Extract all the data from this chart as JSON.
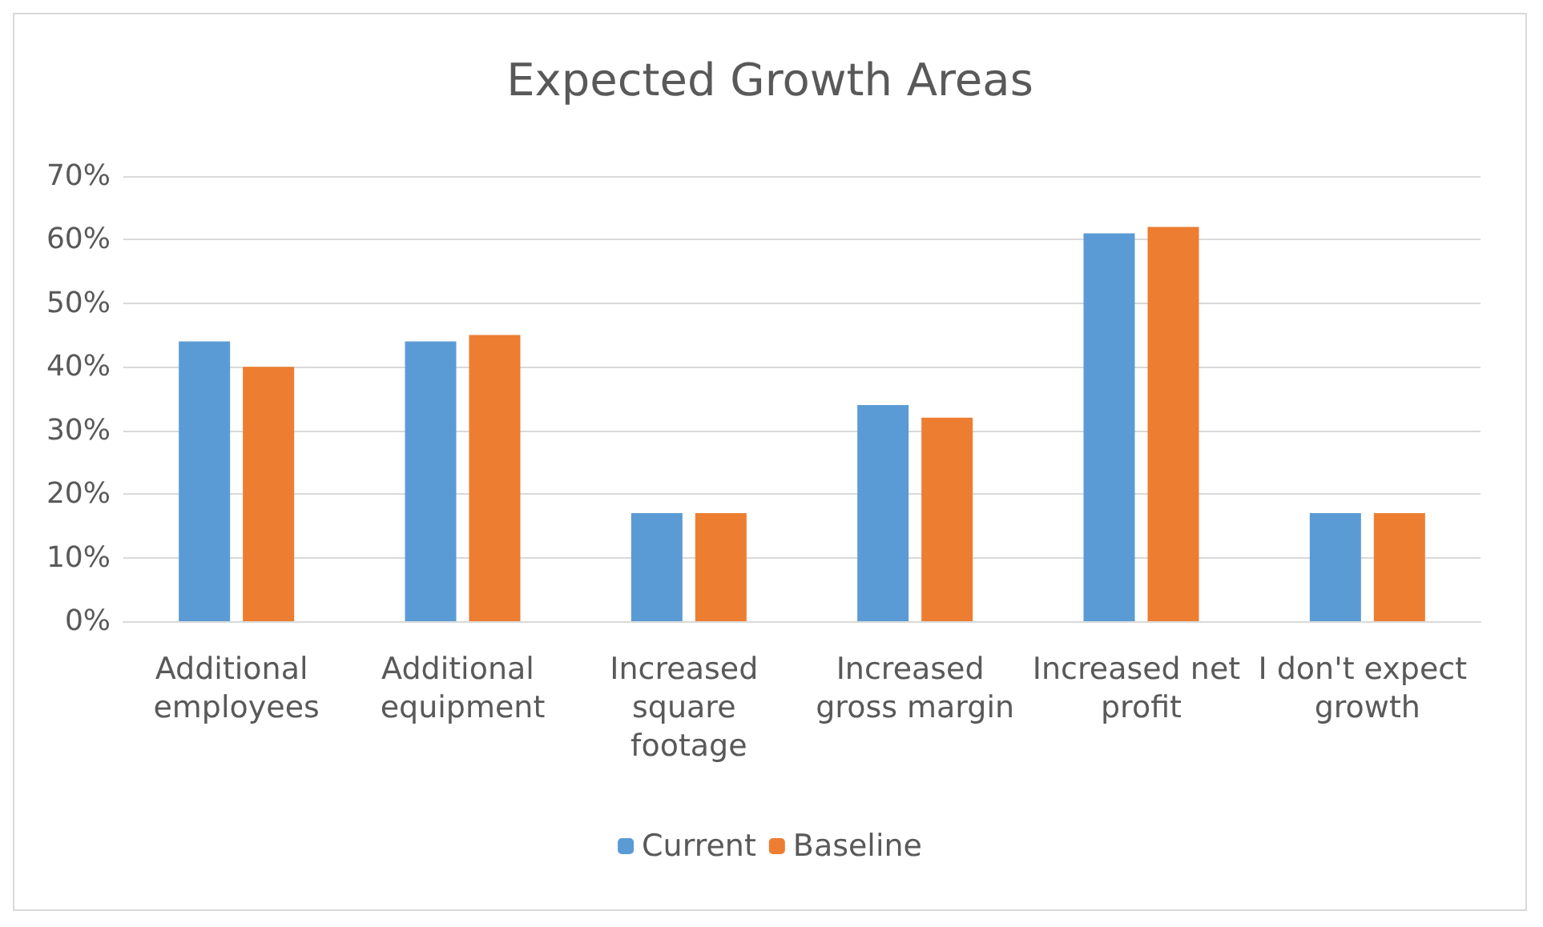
{
  "chart_data": {
    "type": "bar",
    "title": "Expected Growth Areas",
    "categories": [
      "Additional employees",
      "Additional equipment",
      "Increased square footage",
      "Increased gross margin",
      "Increased net profit",
      "I don't expect growth"
    ],
    "series": [
      {
        "name": "Current",
        "color": "#5b9bd5",
        "values": [
          44,
          44,
          17,
          34,
          61,
          17
        ]
      },
      {
        "name": "Baseline",
        "color": "#ed7d31",
        "values": [
          40,
          45,
          17,
          32,
          62,
          17
        ]
      }
    ],
    "ylim": [
      0,
      70
    ],
    "yticks": [
      {
        "value": 0,
        "label": "0%"
      },
      {
        "value": 10,
        "label": "10%"
      },
      {
        "value": 20,
        "label": "20%"
      },
      {
        "value": 30,
        "label": "30%"
      },
      {
        "value": 40,
        "label": "40%"
      },
      {
        "value": 50,
        "label": "50%"
      },
      {
        "value": 60,
        "label": "60%"
      },
      {
        "value": 70,
        "label": "70%"
      }
    ],
    "grid": "y",
    "legend": "bottom"
  }
}
